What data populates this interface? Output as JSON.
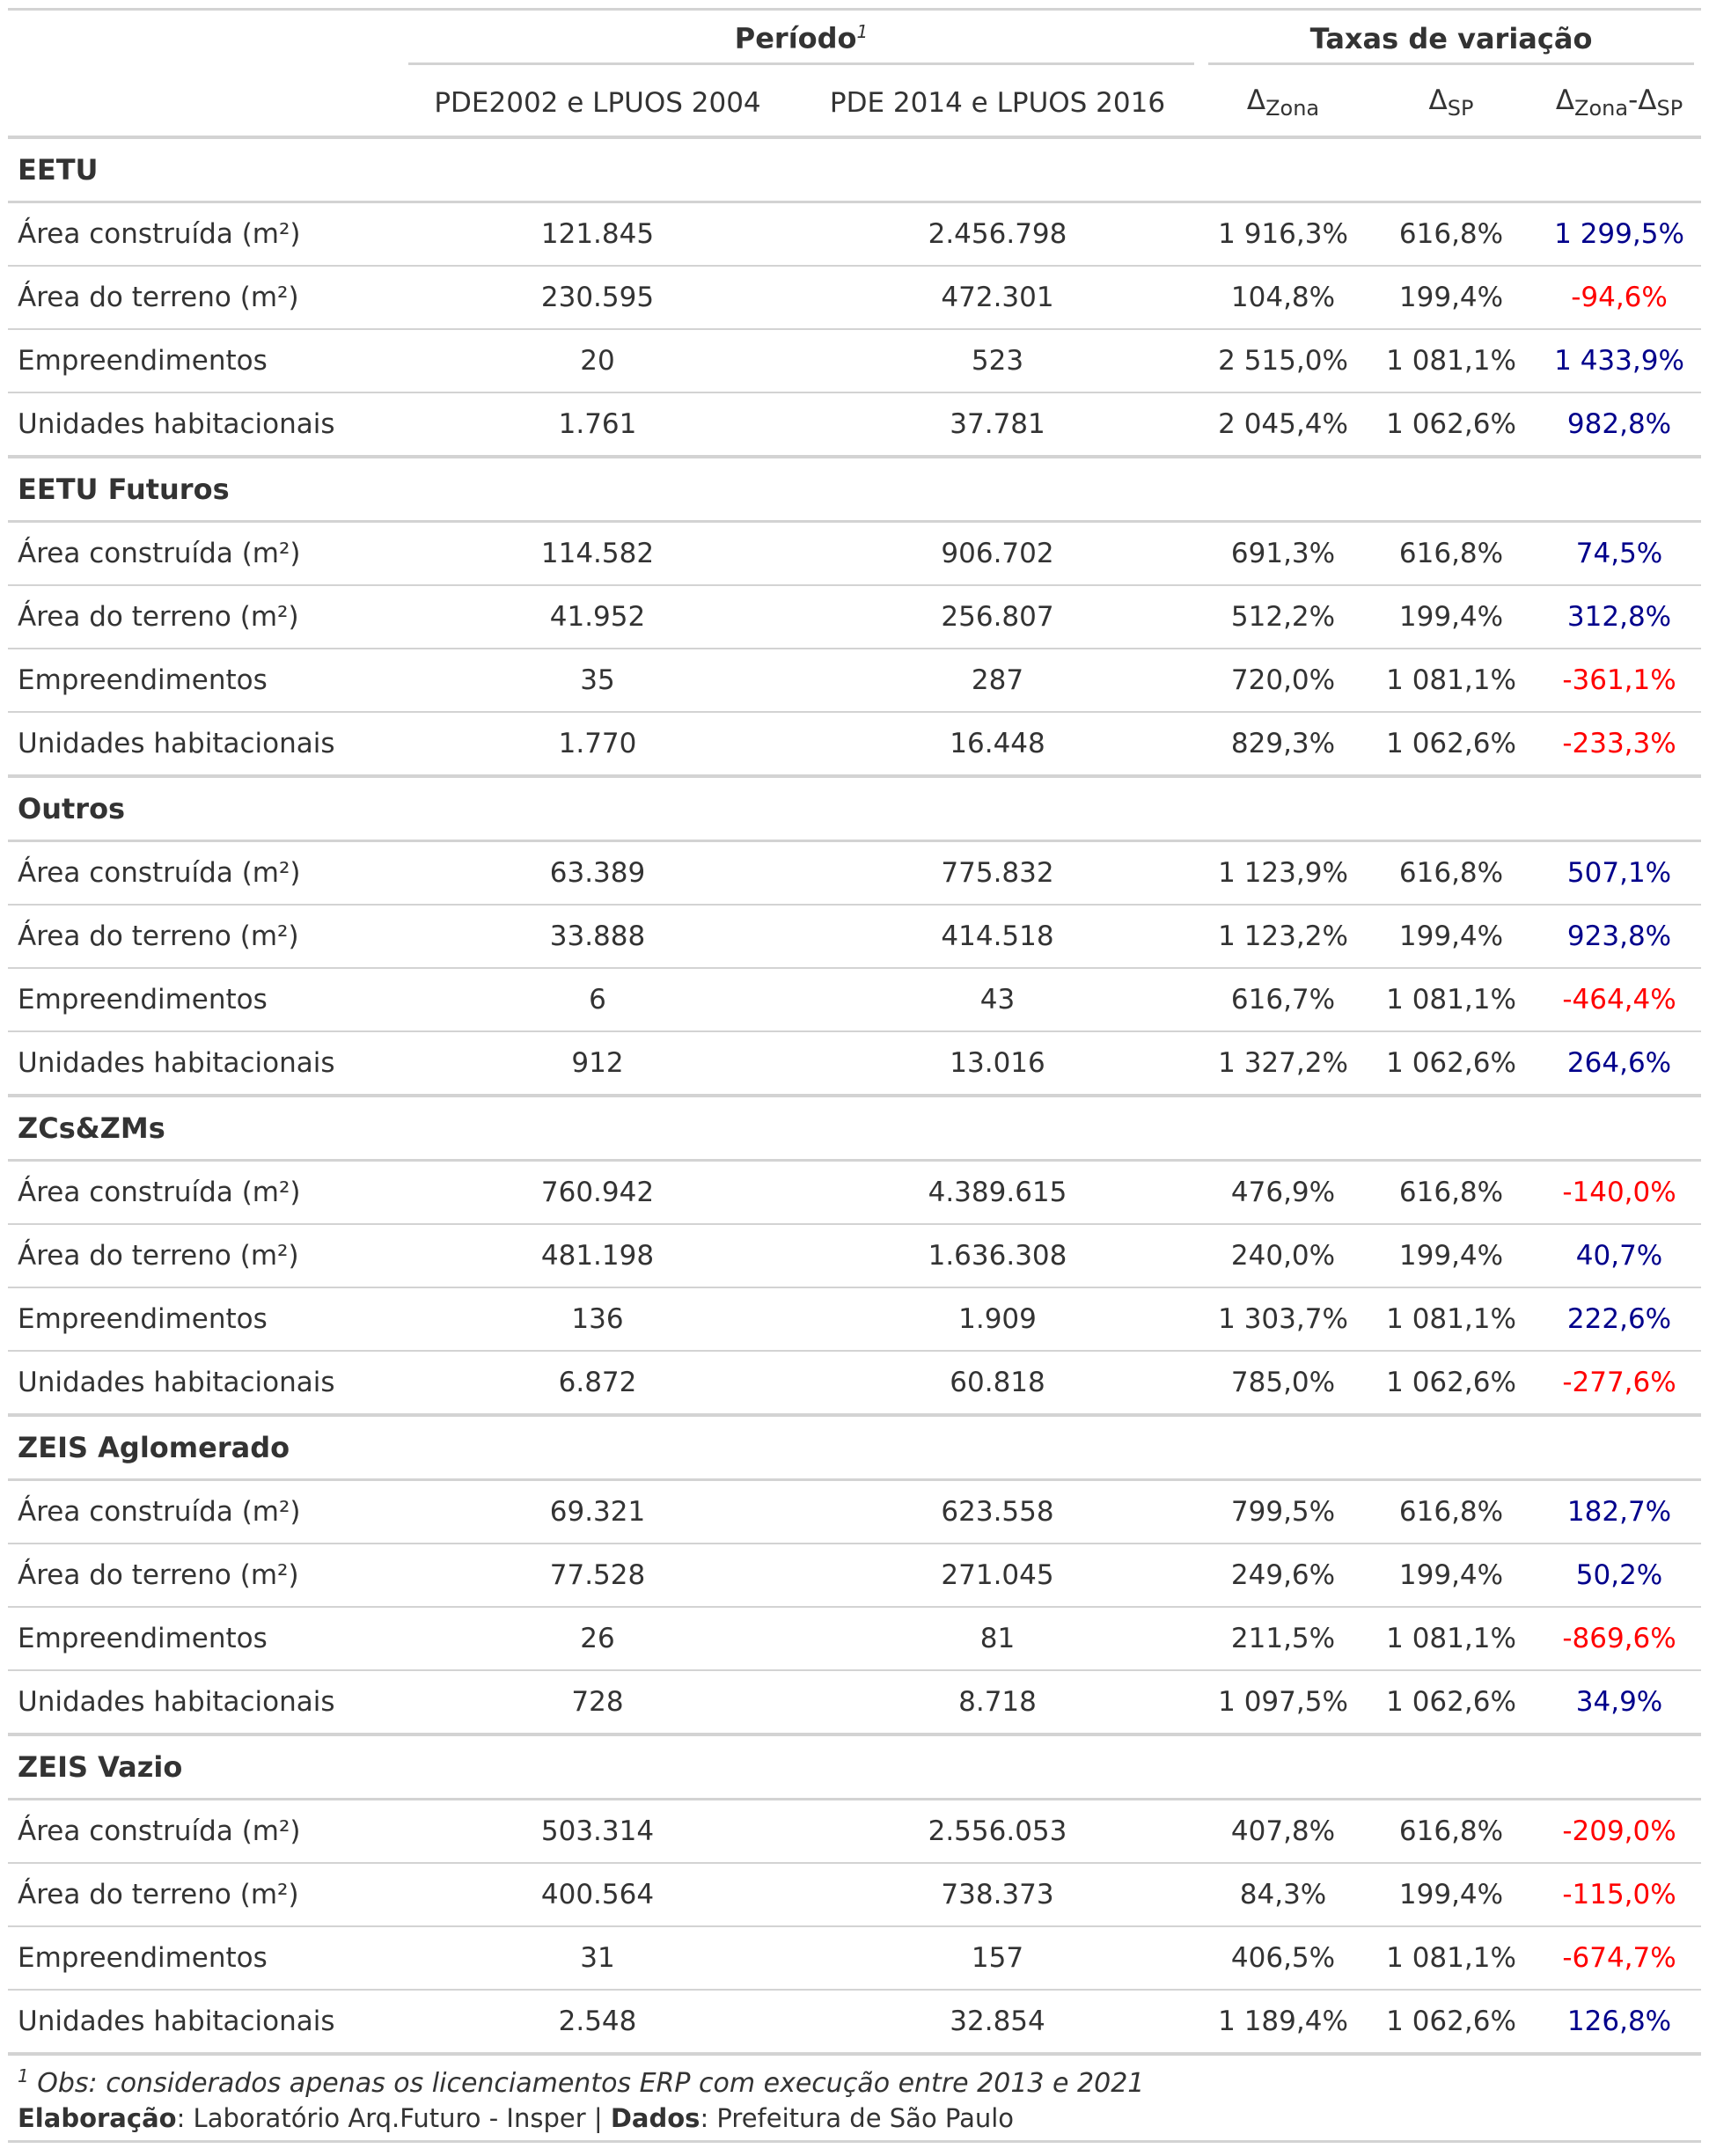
{
  "header": {
    "spanner_periodo": "Período",
    "spanner_periodo_note": "1",
    "spanner_taxas": "Taxas de variação",
    "col_label": "",
    "col_p1": "PDE2002 e LPUOS 2004",
    "col_p2": "PDE 2014 e LPUOS 2016",
    "delta": "Δ",
    "zona": "Zona",
    "sp": "SP",
    "minus": "-"
  },
  "groups": [
    {
      "name": "EETU",
      "rows": [
        {
          "label": "Área construída (m²)",
          "p1": "121.845",
          "p2": "2.456.798",
          "dz": "1 916,3%",
          "dsp": "616,8%",
          "diff": "1 299,5%",
          "sign": "pos"
        },
        {
          "label": "Área do terreno (m²)",
          "p1": "230.595",
          "p2": "472.301",
          "dz": "104,8%",
          "dsp": "199,4%",
          "diff": "-94,6%",
          "sign": "neg"
        },
        {
          "label": "Empreendimentos",
          "p1": "20",
          "p2": "523",
          "dz": "2 515,0%",
          "dsp": "1 081,1%",
          "diff": "1 433,9%",
          "sign": "pos"
        },
        {
          "label": "Unidades habitacionais",
          "p1": "1.761",
          "p2": "37.781",
          "dz": "2 045,4%",
          "dsp": "1 062,6%",
          "diff": "982,8%",
          "sign": "pos"
        }
      ]
    },
    {
      "name": "EETU Futuros",
      "rows": [
        {
          "label": "Área construída (m²)",
          "p1": "114.582",
          "p2": "906.702",
          "dz": "691,3%",
          "dsp": "616,8%",
          "diff": "74,5%",
          "sign": "pos"
        },
        {
          "label": "Área do terreno (m²)",
          "p1": "41.952",
          "p2": "256.807",
          "dz": "512,2%",
          "dsp": "199,4%",
          "diff": "312,8%",
          "sign": "pos"
        },
        {
          "label": "Empreendimentos",
          "p1": "35",
          "p2": "287",
          "dz": "720,0%",
          "dsp": "1 081,1%",
          "diff": "-361,1%",
          "sign": "neg"
        },
        {
          "label": "Unidades habitacionais",
          "p1": "1.770",
          "p2": "16.448",
          "dz": "829,3%",
          "dsp": "1 062,6%",
          "diff": "-233,3%",
          "sign": "neg"
        }
      ]
    },
    {
      "name": "Outros",
      "rows": [
        {
          "label": "Área construída (m²)",
          "p1": "63.389",
          "p2": "775.832",
          "dz": "1 123,9%",
          "dsp": "616,8%",
          "diff": "507,1%",
          "sign": "pos"
        },
        {
          "label": "Área do terreno (m²)",
          "p1": "33.888",
          "p2": "414.518",
          "dz": "1 123,2%",
          "dsp": "199,4%",
          "diff": "923,8%",
          "sign": "pos"
        },
        {
          "label": "Empreendimentos",
          "p1": "6",
          "p2": "43",
          "dz": "616,7%",
          "dsp": "1 081,1%",
          "diff": "-464,4%",
          "sign": "neg"
        },
        {
          "label": "Unidades habitacionais",
          "p1": "912",
          "p2": "13.016",
          "dz": "1 327,2%",
          "dsp": "1 062,6%",
          "diff": "264,6%",
          "sign": "pos"
        }
      ]
    },
    {
      "name": "ZCs&ZMs",
      "rows": [
        {
          "label": "Área construída (m²)",
          "p1": "760.942",
          "p2": "4.389.615",
          "dz": "476,9%",
          "dsp": "616,8%",
          "diff": "-140,0%",
          "sign": "neg"
        },
        {
          "label": "Área do terreno (m²)",
          "p1": "481.198",
          "p2": "1.636.308",
          "dz": "240,0%",
          "dsp": "199,4%",
          "diff": "40,7%",
          "sign": "pos"
        },
        {
          "label": "Empreendimentos",
          "p1": "136",
          "p2": "1.909",
          "dz": "1 303,7%",
          "dsp": "1 081,1%",
          "diff": "222,6%",
          "sign": "pos"
        },
        {
          "label": "Unidades habitacionais",
          "p1": "6.872",
          "p2": "60.818",
          "dz": "785,0%",
          "dsp": "1 062,6%",
          "diff": "-277,6%",
          "sign": "neg"
        }
      ]
    },
    {
      "name": "ZEIS Aglomerado",
      "rows": [
        {
          "label": "Área construída (m²)",
          "p1": "69.321",
          "p2": "623.558",
          "dz": "799,5%",
          "dsp": "616,8%",
          "diff": "182,7%",
          "sign": "pos"
        },
        {
          "label": "Área do terreno (m²)",
          "p1": "77.528",
          "p2": "271.045",
          "dz": "249,6%",
          "dsp": "199,4%",
          "diff": "50,2%",
          "sign": "pos"
        },
        {
          "label": "Empreendimentos",
          "p1": "26",
          "p2": "81",
          "dz": "211,5%",
          "dsp": "1 081,1%",
          "diff": "-869,6%",
          "sign": "neg"
        },
        {
          "label": "Unidades habitacionais",
          "p1": "728",
          "p2": "8.718",
          "dz": "1 097,5%",
          "dsp": "1 062,6%",
          "diff": "34,9%",
          "sign": "pos"
        }
      ]
    },
    {
      "name": "ZEIS Vazio",
      "rows": [
        {
          "label": "Área construída (m²)",
          "p1": "503.314",
          "p2": "2.556.053",
          "dz": "407,8%",
          "dsp": "616,8%",
          "diff": "-209,0%",
          "sign": "neg"
        },
        {
          "label": "Área do terreno (m²)",
          "p1": "400.564",
          "p2": "738.373",
          "dz": "84,3%",
          "dsp": "199,4%",
          "diff": "-115,0%",
          "sign": "neg"
        },
        {
          "label": "Empreendimentos",
          "p1": "31",
          "p2": "157",
          "dz": "406,5%",
          "dsp": "1 081,1%",
          "diff": "-674,7%",
          "sign": "neg"
        },
        {
          "label": "Unidades habitacionais",
          "p1": "2.548",
          "p2": "32.854",
          "dz": "1 189,4%",
          "dsp": "1 062,6%",
          "diff": "126,8%",
          "sign": "pos"
        }
      ]
    }
  ],
  "footnote": {
    "marker": "1",
    "text": " Obs: considerados apenas os licenciamentos ERP com execução entre 2013 e 2021"
  },
  "source": {
    "label1": "Elaboração",
    "text1": ": Laboratório Arq.Futuro - Insper | ",
    "label2": "Dados",
    "text2": ": Prefeitura de São Paulo"
  },
  "colors": {
    "positive": "#00008b",
    "negative": "#ff0000",
    "text": "#333333",
    "rule": "#d3d3d3"
  }
}
